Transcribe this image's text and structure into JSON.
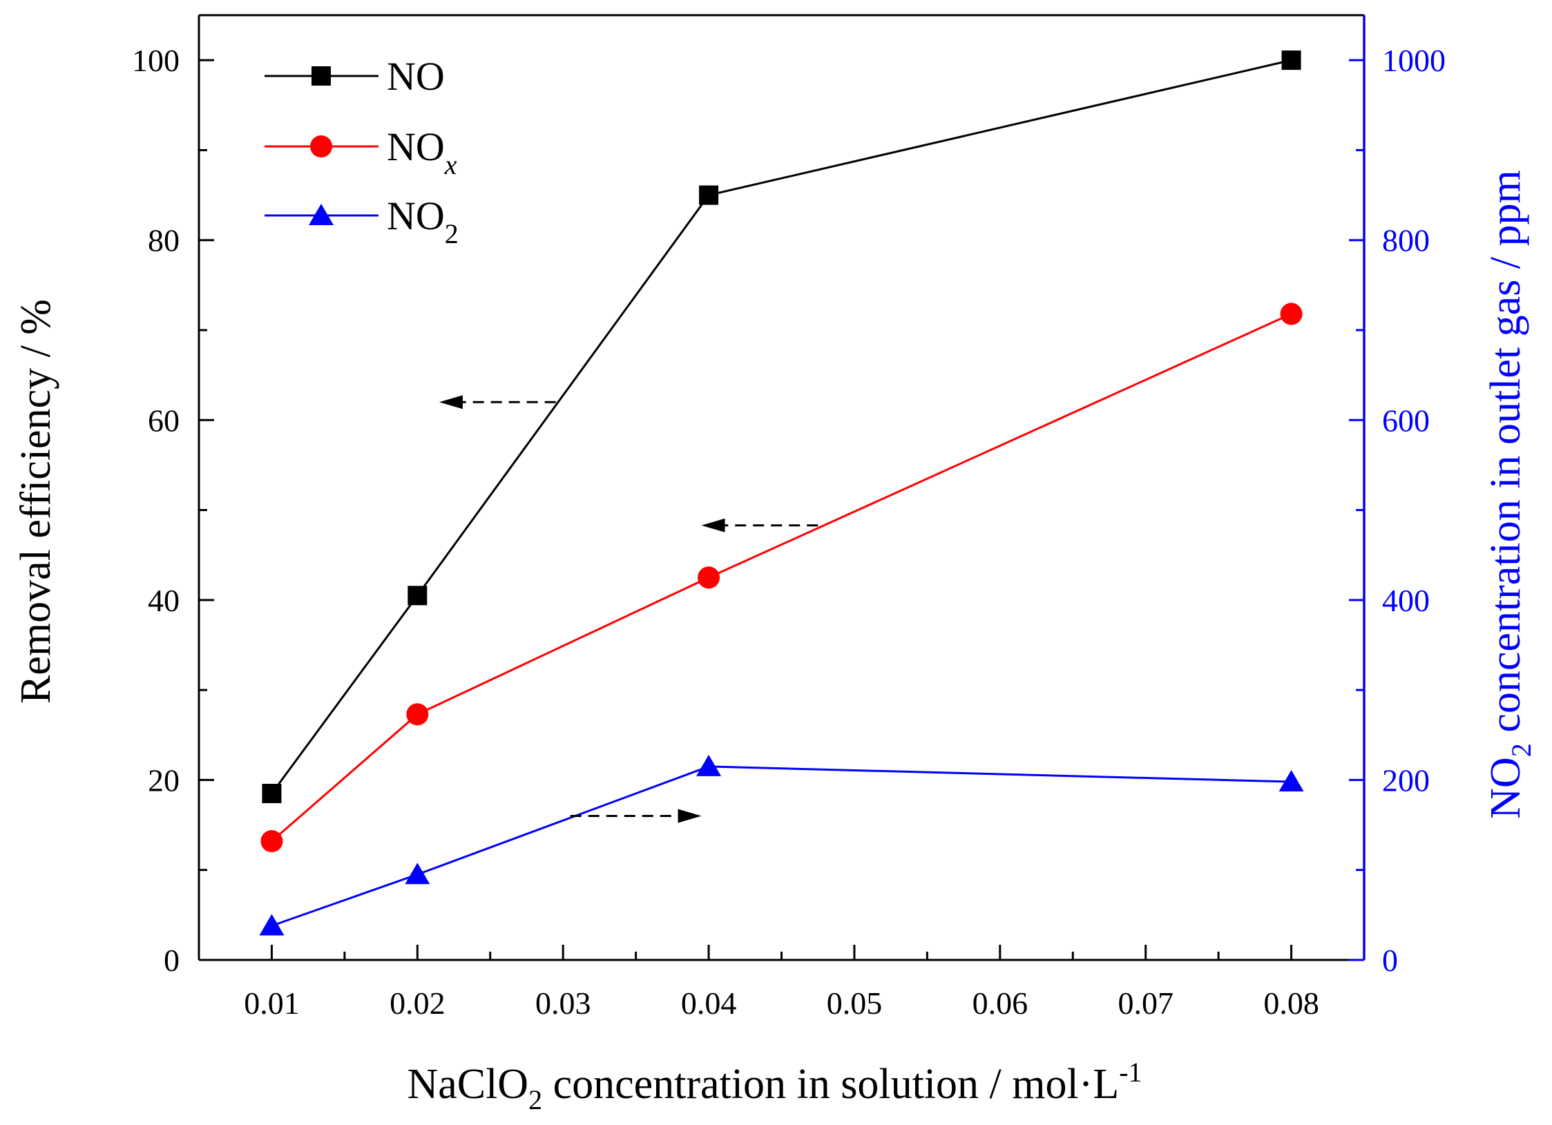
{
  "chart_data": {
    "type": "line",
    "x": [
      0.01,
      0.02,
      0.04,
      0.08
    ],
    "xlim": [
      0.005,
      0.085
    ],
    "xticks": [
      "0.01",
      "0.02",
      "0.03",
      "0.04",
      "0.05",
      "0.06",
      "0.07",
      "0.08"
    ],
    "xlabel": {
      "pre": "NaClO",
      "sub": "2",
      "post": " concentration in solution / mol·L",
      "sup": "-1"
    },
    "ylabel_left": "Removal efficiency / %",
    "ylim_left": [
      0,
      105
    ],
    "yticks_left": [
      "0",
      "20",
      "40",
      "60",
      "80",
      "100"
    ],
    "ylabel_right": {
      "pre": "NO",
      "sub": "2",
      "post": " concentration in outlet gas / ppm"
    },
    "ylim_right": [
      0,
      1050
    ],
    "yticks_right": [
      "0",
      "200",
      "400",
      "600",
      "800",
      "1000"
    ],
    "series": [
      {
        "name": "NO",
        "legend": {
          "base": "NO",
          "sub": ""
        },
        "axis": "left",
        "color": "#000000",
        "marker": "square",
        "values": [
          18.5,
          40.5,
          85,
          100
        ]
      },
      {
        "name": "NOx",
        "legend": {
          "base": "NO",
          "sub": "x"
        },
        "axis": "left",
        "color": "#ff0000",
        "marker": "circle",
        "values": [
          13.2,
          27.3,
          42.5,
          71.8
        ]
      },
      {
        "name": "NO2",
        "legend": {
          "base": "NO",
          "sub": "2"
        },
        "axis": "right",
        "color": "#0000ff",
        "marker": "triangle",
        "values": [
          38,
          95,
          215,
          198
        ]
      }
    ],
    "annotations": [
      {
        "type": "arrow",
        "direction": "left",
        "target_axis": "left",
        "series": "NO"
      },
      {
        "type": "arrow",
        "direction": "left",
        "target_axis": "left",
        "series": "NOx"
      },
      {
        "type": "arrow",
        "direction": "right",
        "target_axis": "right",
        "series": "NO2"
      }
    ],
    "legend_position": "top-left",
    "grid": false
  }
}
